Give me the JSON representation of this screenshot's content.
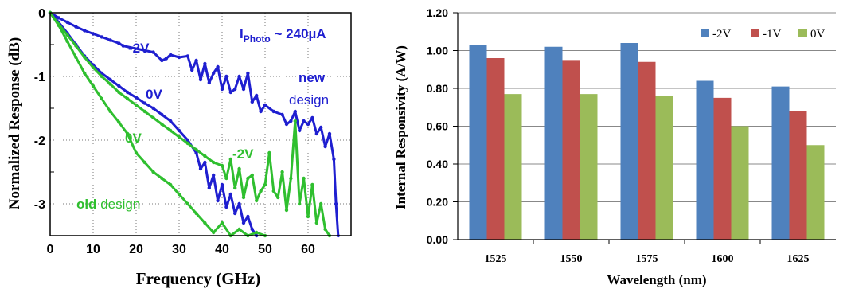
{
  "chart_data": [
    {
      "type": "line",
      "xlabel": "Frequency (GHz)",
      "ylabel": "Normalized Response (dB)",
      "xlim": [
        0,
        70
      ],
      "ylim": [
        -3.5,
        0
      ],
      "x_ticks": [
        "0",
        "10",
        "20",
        "30",
        "40",
        "50",
        "60"
      ],
      "x_tick_values": [
        0,
        10,
        20,
        30,
        40,
        50,
        60
      ],
      "y_ticks": [
        "0",
        "-1",
        "-2",
        "-3"
      ],
      "y_tick_values": [
        0,
        -1,
        -2,
        -3
      ],
      "grid": true,
      "annotations": {
        "iphoto_main": "I",
        "iphoto_sub": "Photo",
        "iphoto_rest": " ~ 240µA",
        "new_bold": "new",
        "new_rest": "design",
        "old_bold": "old",
        "old_rest": " design",
        "label_m2v_new": "-2V",
        "label_0v_new": "0V",
        "label_0v_old": "0V",
        "label_m2v_old": "-2V"
      },
      "colors": {
        "new": "#1f1fd0",
        "old": "#2fbf2f"
      },
      "series": [
        {
          "id": "new_m2v",
          "group": "new",
          "points": [
            [
              0,
              0
            ],
            [
              2,
              -0.08
            ],
            [
              4,
              -0.15
            ],
            [
              6,
              -0.22
            ],
            [
              8,
              -0.28
            ],
            [
              10,
              -0.33
            ],
            [
              12,
              -0.38
            ],
            [
              14,
              -0.43
            ],
            [
              16,
              -0.48
            ],
            [
              17,
              -0.52
            ],
            [
              24,
              -0.62
            ],
            [
              26,
              -0.75
            ],
            [
              27,
              -0.72
            ],
            [
              28,
              -0.66
            ],
            [
              30,
              -0.7
            ],
            [
              32,
              -0.68
            ],
            [
              33,
              -0.9
            ],
            [
              34,
              -0.75
            ],
            [
              35,
              -1.05
            ],
            [
              36,
              -0.8
            ],
            [
              37,
              -1.1
            ],
            [
              38,
              -0.95
            ],
            [
              39,
              -0.85
            ],
            [
              40,
              -1.2
            ],
            [
              41,
              -1.0
            ],
            [
              42,
              -1.25
            ],
            [
              43,
              -1.2
            ],
            [
              44,
              -1.0
            ],
            [
              45,
              -1.2
            ],
            [
              46,
              -0.95
            ],
            [
              47,
              -1.4
            ],
            [
              48,
              -1.3
            ],
            [
              49,
              -1.55
            ],
            [
              50,
              -1.45
            ],
            [
              52,
              -1.55
            ],
            [
              54,
              -1.6
            ],
            [
              55,
              -1.75
            ],
            [
              56,
              -1.7
            ],
            [
              57,
              -1.55
            ],
            [
              58,
              -1.85
            ],
            [
              59,
              -1.7
            ],
            [
              60,
              -1.75
            ],
            [
              61,
              -1.65
            ],
            [
              62,
              -1.9
            ],
            [
              63,
              -1.8
            ],
            [
              64,
              -2.1
            ],
            [
              65,
              -1.9
            ],
            [
              66,
              -2.3
            ],
            [
              66.5,
              -3.0
            ],
            [
              67,
              -3.5
            ]
          ]
        },
        {
          "id": "new_0v",
          "group": "new",
          "points": [
            [
              0,
              0
            ],
            [
              2,
              -0.15
            ],
            [
              4,
              -0.32
            ],
            [
              6,
              -0.5
            ],
            [
              8,
              -0.68
            ],
            [
              10,
              -0.82
            ],
            [
              12,
              -0.95
            ],
            [
              14,
              -1.05
            ],
            [
              16,
              -1.15
            ],
            [
              18,
              -1.25
            ],
            [
              20,
              -1.33
            ],
            [
              22,
              -1.42
            ],
            [
              24,
              -1.5
            ],
            [
              26,
              -1.6
            ],
            [
              28,
              -1.7
            ],
            [
              30,
              -1.85
            ],
            [
              32,
              -2.0
            ],
            [
              34,
              -2.2
            ],
            [
              35,
              -2.45
            ],
            [
              36,
              -2.35
            ],
            [
              37,
              -2.75
            ],
            [
              38,
              -2.55
            ],
            [
              39,
              -2.95
            ],
            [
              40,
              -2.7
            ],
            [
              41,
              -3.05
            ],
            [
              42,
              -2.85
            ],
            [
              43,
              -3.15
            ],
            [
              44,
              -3.0
            ],
            [
              45,
              -3.3
            ],
            [
              46,
              -3.2
            ],
            [
              47,
              -3.4
            ],
            [
              48,
              -3.5
            ]
          ]
        },
        {
          "id": "old_0v_fast",
          "group": "old",
          "points": [
            [
              0,
              0
            ],
            [
              2,
              -0.2
            ],
            [
              4,
              -0.45
            ],
            [
              6,
              -0.7
            ],
            [
              8,
              -0.95
            ],
            [
              10,
              -1.15
            ],
            [
              12,
              -1.35
            ],
            [
              14,
              -1.55
            ],
            [
              16,
              -1.72
            ],
            [
              18,
              -1.9
            ]
          ]
        },
        {
          "id": "old_m2v",
          "group": "old",
          "points": [
            [
              0,
              0
            ],
            [
              2,
              -0.18
            ],
            [
              4,
              -0.35
            ],
            [
              6,
              -0.52
            ],
            [
              8,
              -0.7
            ],
            [
              10,
              -0.86
            ],
            [
              12,
              -1.0
            ],
            [
              14,
              -1.12
            ],
            [
              16,
              -1.25
            ],
            [
              18,
              -1.35
            ],
            [
              20,
              -1.45
            ],
            [
              22,
              -1.55
            ],
            [
              24,
              -1.65
            ],
            [
              26,
              -1.75
            ],
            [
              28,
              -1.85
            ],
            [
              30,
              -1.95
            ],
            [
              32,
              -2.05
            ],
            [
              34,
              -2.15
            ],
            [
              36,
              -2.25
            ],
            [
              38,
              -2.35
            ],
            [
              40,
              -2.4
            ],
            [
              41,
              -2.6
            ],
            [
              42,
              -2.3
            ],
            [
              43,
              -2.75
            ],
            [
              44,
              -2.45
            ],
            [
              45,
              -2.9
            ],
            [
              46,
              -2.6
            ],
            [
              47,
              -2.55
            ],
            [
              48,
              -2.95
            ],
            [
              49,
              -2.8
            ],
            [
              50,
              -2.7
            ],
            [
              51,
              -2.2
            ],
            [
              52,
              -2.8
            ],
            [
              53,
              -2.9
            ],
            [
              54,
              -2.5
            ],
            [
              55,
              -3.1
            ],
            [
              56,
              -2.6
            ],
            [
              57,
              -1.7
            ],
            [
              58,
              -3.0
            ],
            [
              59,
              -2.6
            ],
            [
              60,
              -3.2
            ],
            [
              61,
              -2.7
            ],
            [
              62,
              -3.3
            ],
            [
              63,
              -3.0
            ],
            [
              64,
              -3.4
            ],
            [
              65,
              -3.5
            ]
          ]
        },
        {
          "id": "old_0v",
          "group": "old",
          "points": [
            [
              18,
              -1.9
            ],
            [
              20,
              -2.2
            ],
            [
              22,
              -2.35
            ],
            [
              24,
              -2.5
            ],
            [
              26,
              -2.6
            ],
            [
              28,
              -2.7
            ],
            [
              30,
              -2.85
            ],
            [
              32,
              -3.0
            ],
            [
              34,
              -3.15
            ],
            [
              36,
              -3.3
            ],
            [
              38,
              -3.45
            ],
            [
              40,
              -3.3
            ],
            [
              42,
              -3.5
            ],
            [
              44,
              -3.4
            ],
            [
              46,
              -3.5
            ],
            [
              48,
              -3.45
            ],
            [
              50,
              -3.5
            ]
          ]
        }
      ]
    },
    {
      "type": "bar",
      "xlabel": "Wavelength (nm)",
      "ylabel": "Internal Responsivity (A/W)",
      "categories": [
        "1525",
        "1550",
        "1575",
        "1600",
        "1625"
      ],
      "ylim": [
        0,
        1.2
      ],
      "y_ticks": [
        "0.00",
        "0.20",
        "0.40",
        "0.60",
        "0.80",
        "1.00",
        "1.20"
      ],
      "y_tick_values": [
        0,
        0.2,
        0.4,
        0.6,
        0.8,
        1.0,
        1.2
      ],
      "grid": true,
      "legend_position": "top-right",
      "series": [
        {
          "name": "-2V",
          "color": "#4f81bd",
          "values": [
            1.03,
            1.02,
            1.04,
            0.84,
            0.81
          ]
        },
        {
          "name": "-1V",
          "color": "#c0504d",
          "values": [
            0.96,
            0.95,
            0.94,
            0.75,
            0.68
          ]
        },
        {
          "name": "0V",
          "color": "#9bbb59",
          "values": [
            0.77,
            0.77,
            0.76,
            0.6,
            0.5
          ]
        }
      ]
    }
  ]
}
